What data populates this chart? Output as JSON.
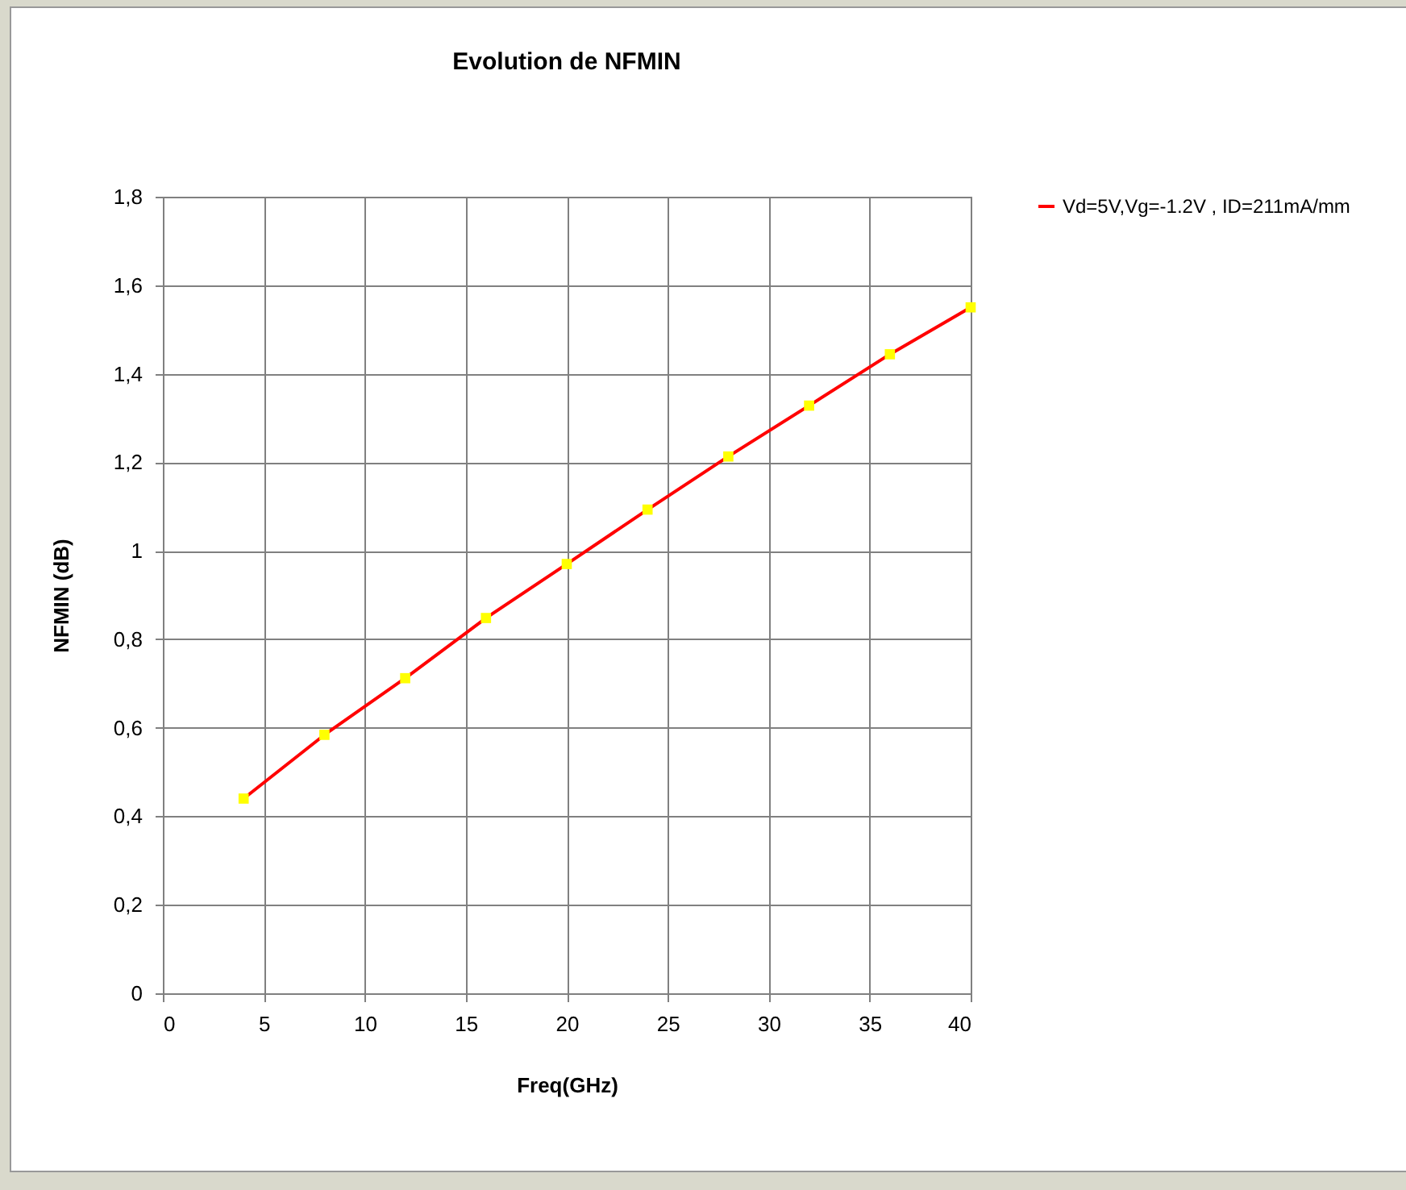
{
  "chart_data": {
    "type": "line",
    "title": "Evolution de NFMIN",
    "xlabel": "Freq(GHz)",
    "ylabel": "NFMIN (dB)",
    "x": [
      4,
      8,
      12,
      16,
      20,
      24,
      28,
      32,
      36,
      40
    ],
    "series": [
      {
        "name": "Vd=5V,Vg=-1.2V , ID=211mA/mm",
        "color": "#ff0000",
        "values": [
          0.44,
          0.584,
          0.712,
          0.848,
          0.97,
          1.093,
          1.213,
          1.328,
          1.444,
          1.55
        ]
      }
    ],
    "xlim": [
      0,
      40
    ],
    "xticks": [
      0,
      5,
      10,
      15,
      20,
      25,
      30,
      35,
      40
    ],
    "ylim": [
      0,
      1.8
    ],
    "yticks": [
      {
        "value": 0,
        "label": "0"
      },
      {
        "value": 0.2,
        "label": "0,2"
      },
      {
        "value": 0.4,
        "label": "0,4"
      },
      {
        "value": 0.6,
        "label": "0,6"
      },
      {
        "value": 0.8,
        "label": "0,8"
      },
      {
        "value": 1,
        "label": "1"
      },
      {
        "value": 1.2,
        "label": "1,2"
      },
      {
        "value": 1.4,
        "label": "1,4"
      },
      {
        "value": 1.6,
        "label": "1,6"
      },
      {
        "value": 1.8,
        "label": "1,8"
      }
    ],
    "grid": true,
    "legend": "right",
    "marker": "square",
    "line_style": "solid"
  }
}
